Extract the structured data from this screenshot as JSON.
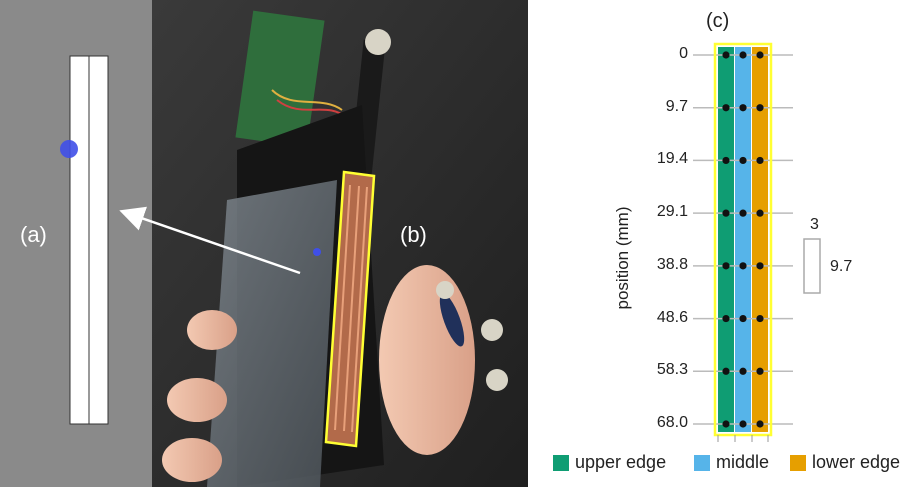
{
  "panel_a": {
    "label": "(a)"
  },
  "panel_b": {
    "label": "(b)"
  },
  "panel_c": {
    "label": "(c)",
    "ylabel": "position (mm)",
    "ticks": [
      "0",
      "9.7",
      "19.4",
      "29.1",
      "38.8",
      "48.6",
      "58.3",
      "68.0"
    ],
    "scale": {
      "width_label": "3",
      "height_label": "9.7"
    },
    "legend": [
      {
        "label": "upper edge",
        "color": "#0f9d73"
      },
      {
        "label": "middle",
        "color": "#56b4e9"
      },
      {
        "label": "lower edge",
        "color": "#e69f00"
      }
    ]
  },
  "colors": {
    "highlight": "#ffff33",
    "marker": "#3f4fe8",
    "arrow": "#ffffff"
  }
}
